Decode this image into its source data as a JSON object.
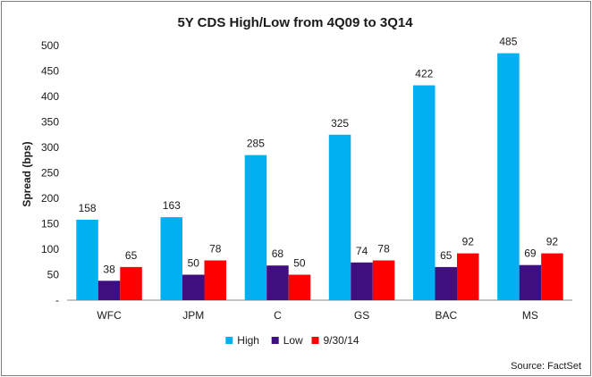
{
  "chart_data": {
    "type": "bar",
    "title": "5Y CDS High/Low from 4Q09 to 3Q14",
    "ylabel": "Spread (bps)",
    "xlabel": "",
    "ylim": [
      0,
      500
    ],
    "yticks": [
      {
        "value": 0,
        "label": "-"
      },
      {
        "value": 50,
        "label": "50"
      },
      {
        "value": 100,
        "label": "100"
      },
      {
        "value": 150,
        "label": "150"
      },
      {
        "value": 200,
        "label": "200"
      },
      {
        "value": 250,
        "label": "250"
      },
      {
        "value": 300,
        "label": "300"
      },
      {
        "value": 350,
        "label": "350"
      },
      {
        "value": 400,
        "label": "400"
      },
      {
        "value": 450,
        "label": "450"
      },
      {
        "value": 500,
        "label": "500"
      }
    ],
    "categories": [
      "WFC",
      "JPM",
      "C",
      "GS",
      "BAC",
      "MS"
    ],
    "series": [
      {
        "name": "High",
        "color": "#00b0f0",
        "values": [
          158,
          163,
          285,
          325,
          422,
          485
        ]
      },
      {
        "name": "Low",
        "color": "#3f0f7f",
        "values": [
          38,
          50,
          68,
          74,
          65,
          69
        ]
      },
      {
        "name": "9/30/14",
        "color": "#ff0000",
        "values": [
          65,
          78,
          50,
          78,
          92,
          92
        ]
      }
    ],
    "grid": false,
    "legend": "bottom",
    "source": "Source:  FactSet"
  }
}
